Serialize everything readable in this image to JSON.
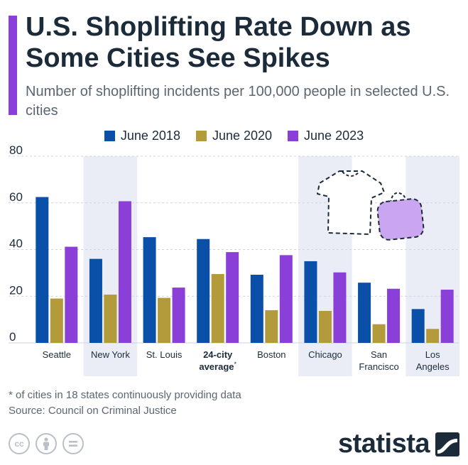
{
  "header": {
    "title": "U.S. Shoplifting Rate Down as Some Cities See Spikes",
    "subtitle": "Number of shoplifting incidents per 100,000 people in selected U.S. cities"
  },
  "colors": {
    "accent": "#8b3fd9",
    "series": [
      "#0a4fa8",
      "#b39a3a",
      "#8b3fd9"
    ],
    "band": "#eaedf6",
    "highlight": "#ffffff",
    "grid": "#cfd5db",
    "text": "#1c2b3a"
  },
  "chart_data": {
    "type": "bar",
    "categories": [
      "Seattle",
      "New York",
      "St. Louis",
      "24-city average*",
      "Boston",
      "Chicago",
      "San Francisco",
      "Los Angeles"
    ],
    "category_lines": [
      [
        "Seattle"
      ],
      [
        "New York"
      ],
      [
        "St. Louis"
      ],
      [
        "24-city",
        "average*"
      ],
      [
        "Boston"
      ],
      [
        "Chicago"
      ],
      [
        "San",
        "Francisco"
      ],
      [
        "Los",
        "Angeles"
      ]
    ],
    "series": [
      {
        "name": "June 2018",
        "values": [
          62.5,
          36.0,
          45.3,
          44.5,
          29.2,
          35.0,
          25.8,
          14.5
        ]
      },
      {
        "name": "June 2020",
        "values": [
          19.0,
          20.7,
          19.3,
          29.5,
          14.0,
          13.7,
          8.0,
          6.0
        ]
      },
      {
        "name": "June 2023",
        "values": [
          41.2,
          60.7,
          23.7,
          38.9,
          37.6,
          30.2,
          23.2,
          22.8
        ]
      }
    ],
    "yticks": [
      0,
      20,
      40,
      60,
      80
    ],
    "ylim": [
      0,
      80
    ],
    "grid": true,
    "legend_position": "top-center",
    "highlight_category": "24-city average*"
  },
  "decorations": {
    "shirt_icon": "tshirt-outline-icon",
    "bag_icon": "shopping-bag-icon"
  },
  "footer": {
    "note": "* of cities in 18 states continuously providing data",
    "source": "Source: Council on Criminal Justice",
    "brand": "statista",
    "license_icons": [
      "cc",
      "by",
      "nd"
    ]
  }
}
